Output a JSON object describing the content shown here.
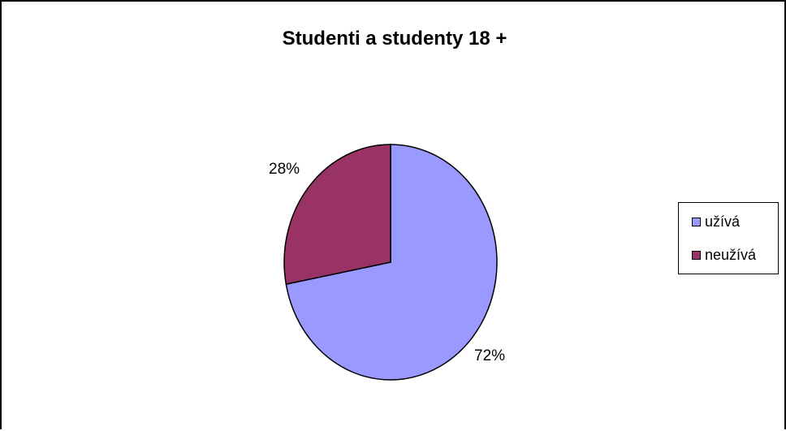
{
  "chart_data": {
    "type": "pie",
    "title": "Studenti a studenty 18 +",
    "slices": [
      {
        "name": "užívá",
        "value": 72,
        "label": "72%",
        "color": "#9999FF"
      },
      {
        "name": "neužívá",
        "value": 28,
        "label": "28%",
        "color": "#993366"
      }
    ],
    "start_angle_deg": 0,
    "direction": "clockwise",
    "legend_position": "right"
  }
}
